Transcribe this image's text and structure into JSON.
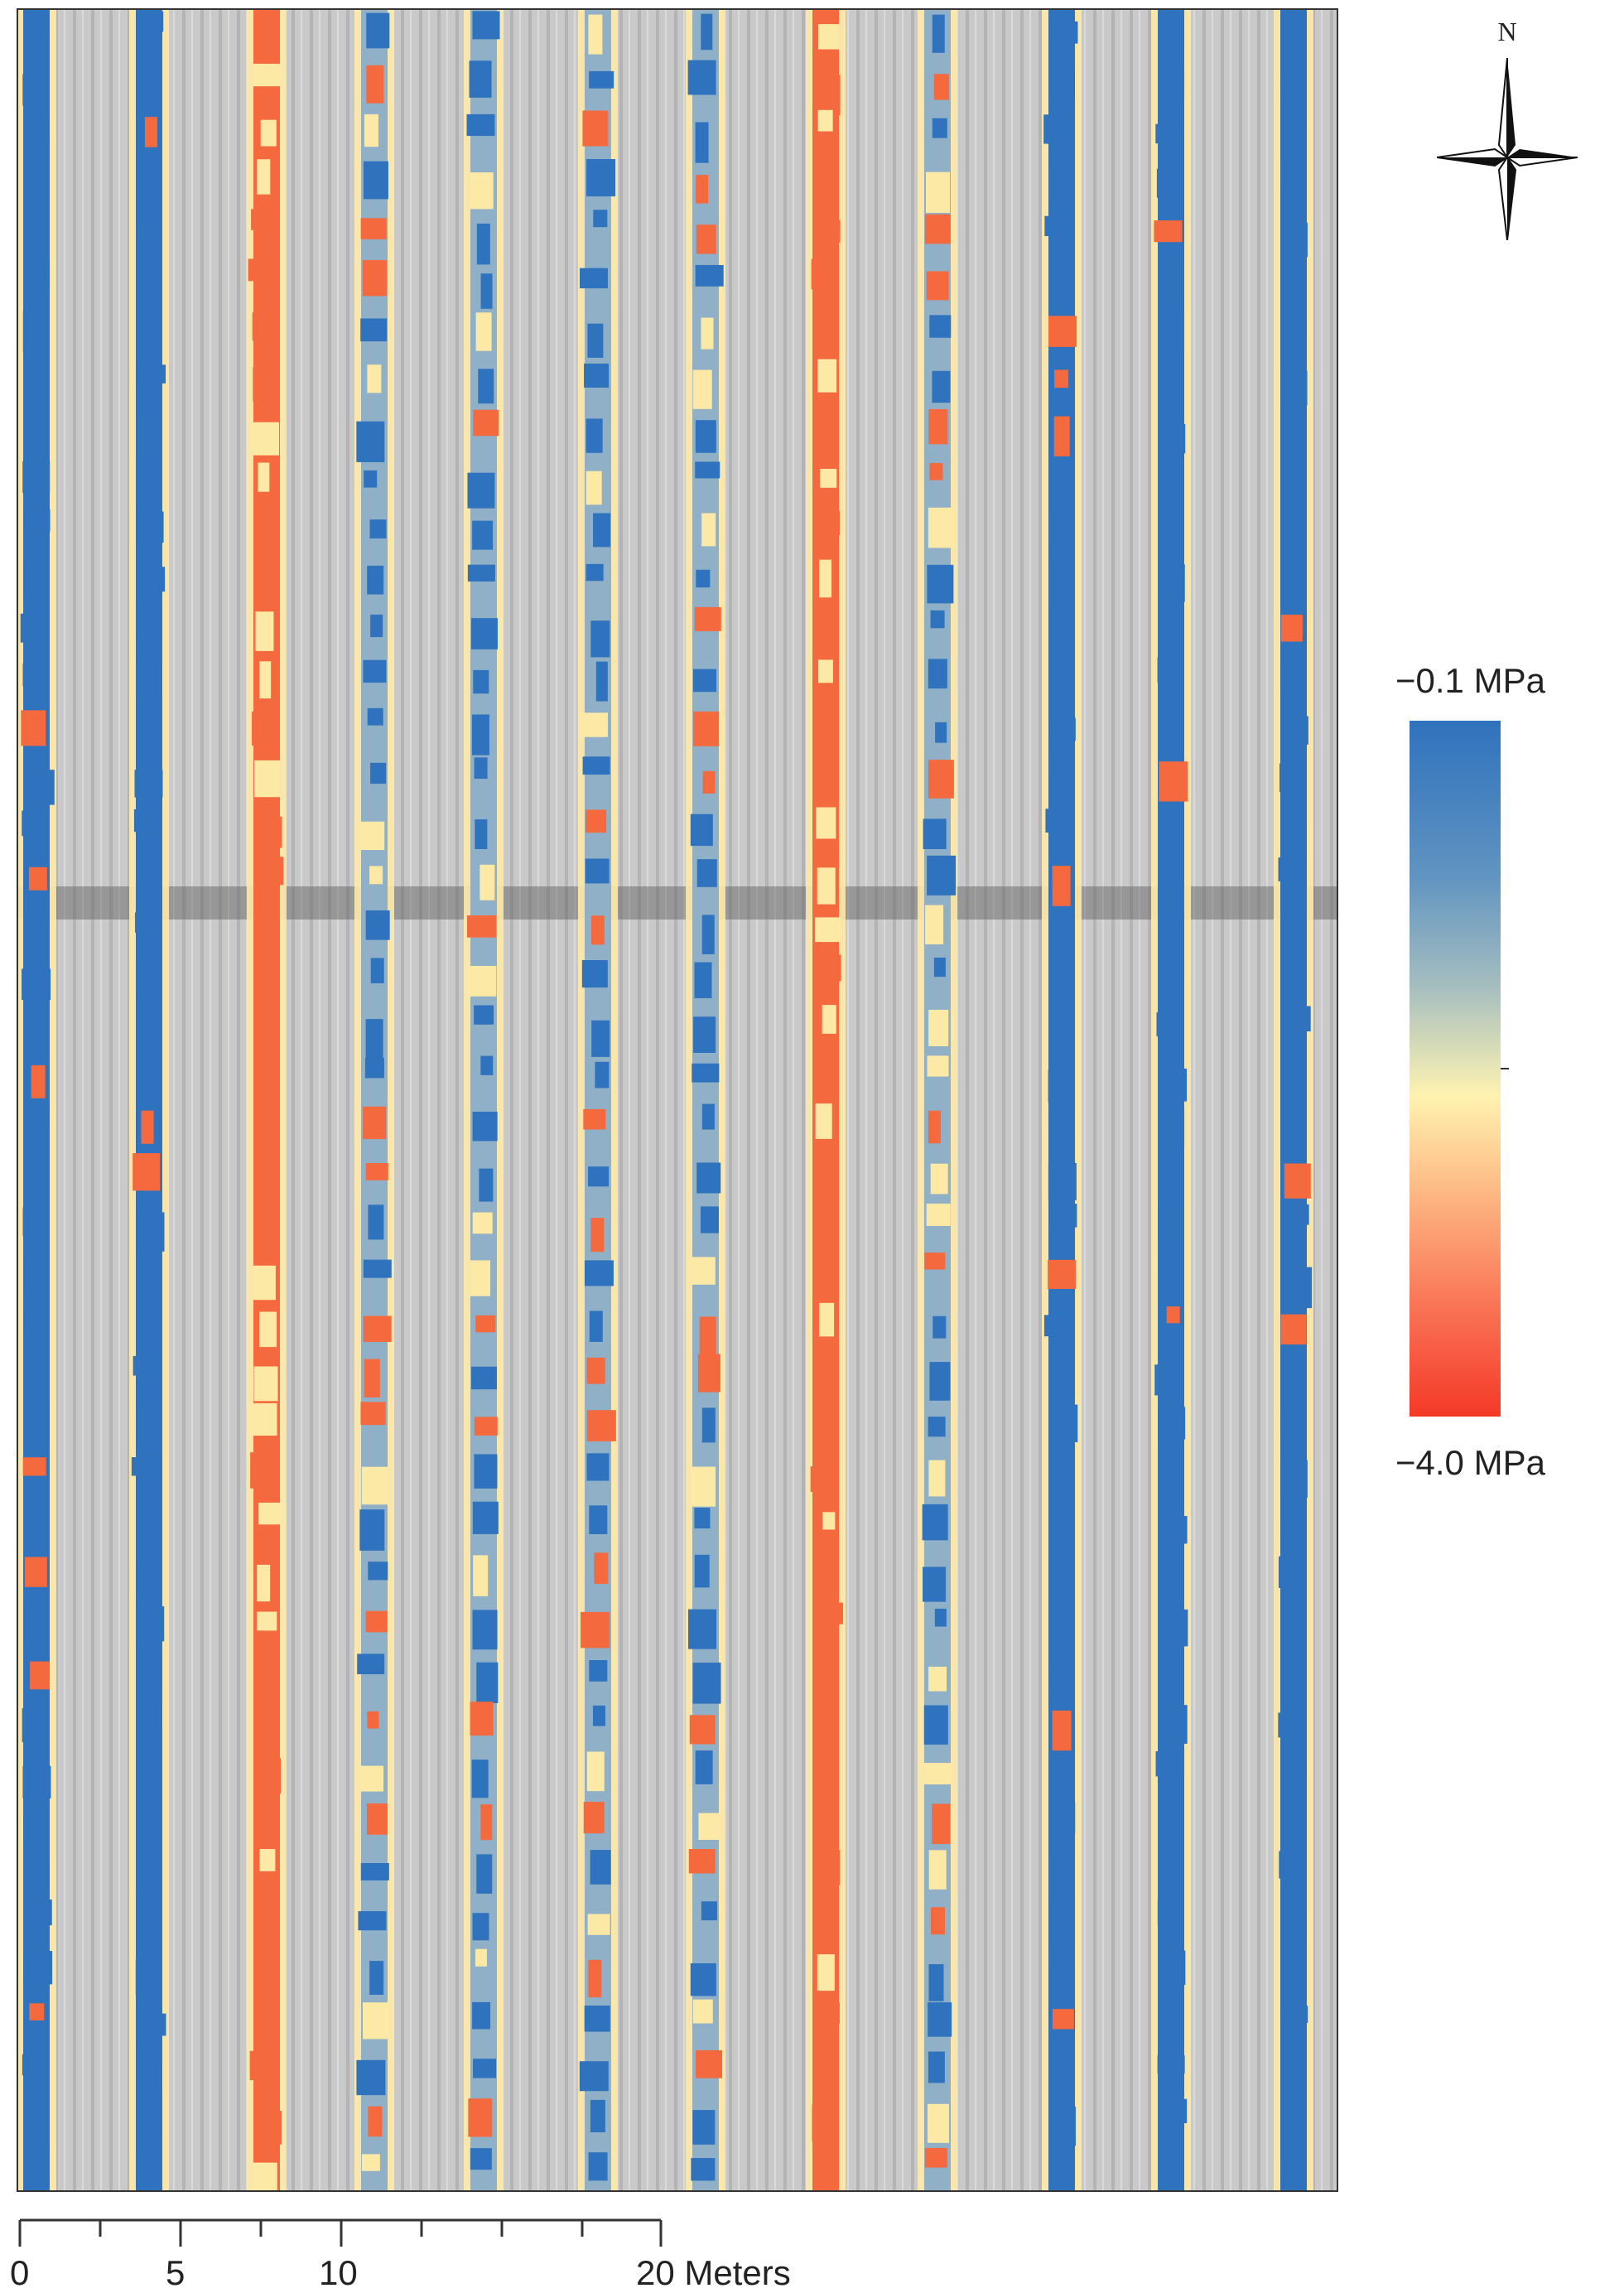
{
  "map": {
    "north_label": "N",
    "legend": {
      "max_label": "−0.1 MPa",
      "min_label": "−4.0 MPa",
      "color_high": "#2f72bd",
      "color_mid": "#fff2b0",
      "color_low": "#f43927"
    },
    "scale": {
      "labels": [
        "0",
        "5",
        "10",
        "20 Meters"
      ],
      "units": "Meters"
    },
    "crop_rows": [
      {
        "dominant": "wet"
      },
      {
        "dominant": "wet"
      },
      {
        "dominant": "dry"
      },
      {
        "dominant": "mixed"
      },
      {
        "dominant": "mixed"
      },
      {
        "dominant": "mixed"
      },
      {
        "dominant": "mixed"
      },
      {
        "dominant": "dry"
      },
      {
        "dominant": "mixed"
      },
      {
        "dominant": "wet"
      },
      {
        "dominant": "wet"
      },
      {
        "dominant": "wet"
      }
    ],
    "colors": {
      "background": "#c7c7c7",
      "wet": "#2f72bd",
      "dry": "#f46a3e",
      "edge": "#fde9a6"
    }
  }
}
